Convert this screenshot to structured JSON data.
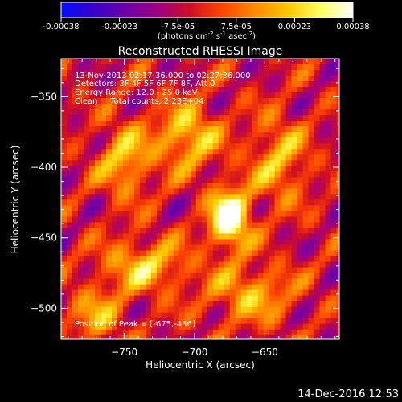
{
  "colorbar": {
    "ticks": [
      "-0.00038",
      "-0.00023",
      "-7.5e-05",
      "7.5e-05",
      "0.00023",
      "0.00038"
    ],
    "unit_prefix": "(photons cm",
    "unit_exp1": "-2",
    "unit_mid": " s",
    "unit_exp2": "-1",
    "unit_mid2": " asec",
    "unit_exp3": "-2",
    "unit_suffix": ")",
    "colors": [
      "#0010ff",
      "#3a00c8",
      "#6a00a8",
      "#a00080",
      "#d01020",
      "#ff4800",
      "#ff8c00",
      "#ffc800",
      "#ffff60",
      "#ffffff"
    ]
  },
  "chart_data": {
    "type": "heatmap",
    "title": "Reconstructed RHESSI Image",
    "xlabel": "Heliocentric X (arcsec)",
    "ylabel": "Heliocentric Y (arcsec)",
    "xlim": [
      -795,
      -597
    ],
    "ylim": [
      -522,
      -323
    ],
    "x_ticks": [
      -750,
      -700,
      -650
    ],
    "y_ticks": [
      -350,
      -400,
      -450,
      -500
    ],
    "value_range": [
      -0.00038,
      0.00038
    ],
    "peak": [
      -675,
      -436
    ],
    "annotations": [
      "13-Nov-2013 02:17:36.000 to 02:27:36.000",
      "Detectors: 3F 4F 5F 6F 7F 8F, Att 0",
      "Energy Range: 12.0 - 25.0 keV",
      "Clean     Total counts: 2.23E+04"
    ],
    "peak_label": "Position of Peak = [-675,-436]"
  },
  "footer": {
    "timestamp": "14-Dec-2016 12:53"
  }
}
